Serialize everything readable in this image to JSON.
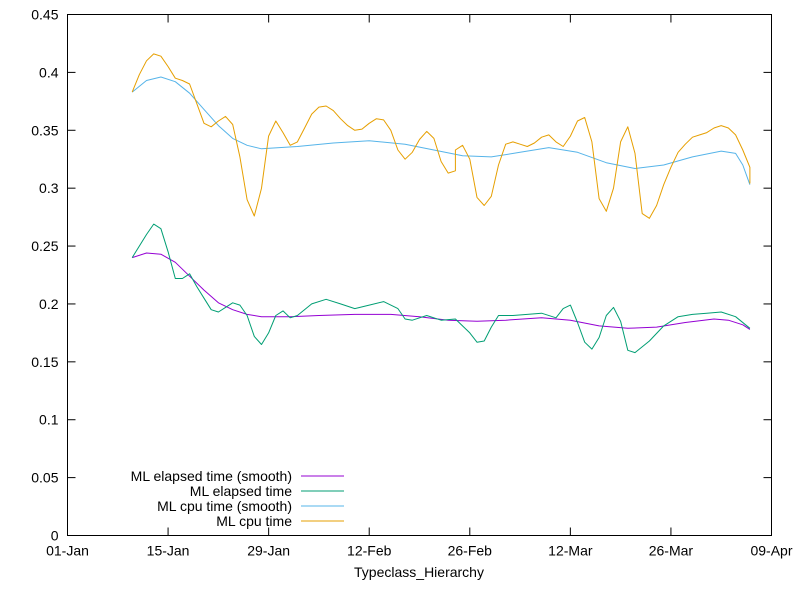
{
  "chart_data": {
    "type": "line",
    "title": "",
    "xlabel": "Typeclass_Hierarchy",
    "ylabel": "",
    "x_ticks": [
      "01-Jan",
      "15-Jan",
      "29-Jan",
      "12-Feb",
      "26-Feb",
      "12-Mar",
      "26-Mar",
      "09-Apr"
    ],
    "y_ticks": [
      "0",
      "0.05",
      "0.1",
      "0.15",
      "0.2",
      "0.25",
      "0.3",
      "0.35",
      "0.4",
      "0.45"
    ],
    "xlim": [
      "01-Jan",
      "09-Apr"
    ],
    "ylim": [
      0,
      0.45
    ],
    "grid": false,
    "legend_position": "bottom-left",
    "series": [
      {
        "name": "ML elapsed time (smooth)",
        "color": "#9400d3",
        "points": [
          [
            "10-Jan",
            0.24
          ],
          [
            "12-Jan",
            0.244
          ],
          [
            "14-Jan",
            0.243
          ],
          [
            "16-Jan",
            0.236
          ],
          [
            "18-Jan",
            0.224
          ],
          [
            "20-Jan",
            0.212
          ],
          [
            "22-Jan",
            0.201
          ],
          [
            "24-Jan",
            0.195
          ],
          [
            "26-Jan",
            0.191
          ],
          [
            "28-Jan",
            0.189
          ],
          [
            "01-Feb",
            0.189
          ],
          [
            "05-Feb",
            0.19
          ],
          [
            "10-Feb",
            0.191
          ],
          [
            "15-Feb",
            0.191
          ],
          [
            "19-Feb",
            0.189
          ],
          [
            "23-Feb",
            0.186
          ],
          [
            "27-Feb",
            0.185
          ],
          [
            "03-Mar",
            0.186
          ],
          [
            "08-Mar",
            0.188
          ],
          [
            "12-Mar",
            0.186
          ],
          [
            "16-Mar",
            0.181
          ],
          [
            "20-Mar",
            0.179
          ],
          [
            "24-Mar",
            0.18
          ],
          [
            "28-Mar",
            0.184
          ],
          [
            "01-Apr",
            0.187
          ],
          [
            "03-Apr",
            0.186
          ],
          [
            "05-Apr",
            0.182
          ],
          [
            "06-Apr",
            0.178
          ]
        ]
      },
      {
        "name": "ML elapsed time",
        "color": "#009e73",
        "points": [
          [
            "10-Jan",
            0.24
          ],
          [
            "12-Jan",
            0.26
          ],
          [
            "13-Jan",
            0.269
          ],
          [
            "14-Jan",
            0.265
          ],
          [
            "15-Jan",
            0.245
          ],
          [
            "16-Jan",
            0.222
          ],
          [
            "17-Jan",
            0.222
          ],
          [
            "18-Jan",
            0.226
          ],
          [
            "19-Jan",
            0.215
          ],
          [
            "20-Jan",
            0.205
          ],
          [
            "21-Jan",
            0.195
          ],
          [
            "22-Jan",
            0.193
          ],
          [
            "23-Jan",
            0.197
          ],
          [
            "24-Jan",
            0.201
          ],
          [
            "25-Jan",
            0.199
          ],
          [
            "26-Jan",
            0.19
          ],
          [
            "27-Jan",
            0.172
          ],
          [
            "28-Jan",
            0.165
          ],
          [
            "29-Jan",
            0.175
          ],
          [
            "30-Jan",
            0.19
          ],
          [
            "31-Jan",
            0.194
          ],
          [
            "01-Feb",
            0.188
          ],
          [
            "02-Feb",
            0.19
          ],
          [
            "04-Feb",
            0.2
          ],
          [
            "06-Feb",
            0.204
          ],
          [
            "08-Feb",
            0.2
          ],
          [
            "10-Feb",
            0.196
          ],
          [
            "12-Feb",
            0.199
          ],
          [
            "14-Feb",
            0.202
          ],
          [
            "16-Feb",
            0.196
          ],
          [
            "17-Feb",
            0.187
          ],
          [
            "18-Feb",
            0.186
          ],
          [
            "20-Feb",
            0.19
          ],
          [
            "22-Feb",
            0.186
          ],
          [
            "24-Feb",
            0.187
          ],
          [
            "26-Feb",
            0.175
          ],
          [
            "27-Feb",
            0.167
          ],
          [
            "28-Feb",
            0.168
          ],
          [
            "01-Mar",
            0.18
          ],
          [
            "02-Mar",
            0.19
          ],
          [
            "04-Mar",
            0.19
          ],
          [
            "06-Mar",
            0.191
          ],
          [
            "08-Mar",
            0.192
          ],
          [
            "10-Mar",
            0.188
          ],
          [
            "11-Mar",
            0.196
          ],
          [
            "12-Mar",
            0.199
          ],
          [
            "13-Mar",
            0.184
          ],
          [
            "14-Mar",
            0.167
          ],
          [
            "15-Mar",
            0.161
          ],
          [
            "16-Mar",
            0.171
          ],
          [
            "17-Mar",
            0.19
          ],
          [
            "18-Mar",
            0.197
          ],
          [
            "19-Mar",
            0.185
          ],
          [
            "20-Mar",
            0.16
          ],
          [
            "21-Mar",
            0.158
          ],
          [
            "23-Mar",
            0.168
          ],
          [
            "25-Mar",
            0.181
          ],
          [
            "27-Mar",
            0.189
          ],
          [
            "29-Mar",
            0.191
          ],
          [
            "31-Mar",
            0.192
          ],
          [
            "02-Apr",
            0.193
          ],
          [
            "04-Apr",
            0.189
          ],
          [
            "06-Apr",
            0.179
          ]
        ]
      },
      {
        "name": "ML cpu time (smooth)",
        "color": "#56b4e9",
        "points": [
          [
            "10-Jan",
            0.383
          ],
          [
            "12-Jan",
            0.393
          ],
          [
            "14-Jan",
            0.396
          ],
          [
            "16-Jan",
            0.392
          ],
          [
            "18-Jan",
            0.382
          ],
          [
            "20-Jan",
            0.368
          ],
          [
            "22-Jan",
            0.354
          ],
          [
            "24-Jan",
            0.343
          ],
          [
            "26-Jan",
            0.337
          ],
          [
            "28-Jan",
            0.334
          ],
          [
            "02-Feb",
            0.336
          ],
          [
            "07-Feb",
            0.339
          ],
          [
            "12-Feb",
            0.341
          ],
          [
            "17-Feb",
            0.338
          ],
          [
            "21-Feb",
            0.333
          ],
          [
            "25-Feb",
            0.328
          ],
          [
            "01-Mar",
            0.327
          ],
          [
            "05-Mar",
            0.331
          ],
          [
            "09-Mar",
            0.335
          ],
          [
            "13-Mar",
            0.331
          ],
          [
            "17-Mar",
            0.322
          ],
          [
            "21-Mar",
            0.317
          ],
          [
            "25-Mar",
            0.32
          ],
          [
            "29-Mar",
            0.327
          ],
          [
            "02-Apr",
            0.332
          ],
          [
            "04-Apr",
            0.33
          ],
          [
            "05-Apr",
            0.32
          ],
          [
            "06-Apr",
            0.303
          ]
        ]
      },
      {
        "name": "ML cpu time",
        "color": "#e69f00",
        "points": [
          [
            "10-Jan",
            0.383
          ],
          [
            "11-Jan",
            0.398
          ],
          [
            "12-Jan",
            0.41
          ],
          [
            "13-Jan",
            0.416
          ],
          [
            "14-Jan",
            0.414
          ],
          [
            "15-Jan",
            0.405
          ],
          [
            "16-Jan",
            0.395
          ],
          [
            "17-Jan",
            0.393
          ],
          [
            "18-Jan",
            0.39
          ],
          [
            "19-Jan",
            0.373
          ],
          [
            "20-Jan",
            0.356
          ],
          [
            "21-Jan",
            0.353
          ],
          [
            "22-Jan",
            0.358
          ],
          [
            "23-Jan",
            0.362
          ],
          [
            "24-Jan",
            0.355
          ],
          [
            "25-Jan",
            0.327
          ],
          [
            "26-Jan",
            0.29
          ],
          [
            "27-Jan",
            0.276
          ],
          [
            "28-Jan",
            0.3
          ],
          [
            "29-Jan",
            0.345
          ],
          [
            "30-Jan",
            0.358
          ],
          [
            "31-Jan",
            0.348
          ],
          [
            "01-Feb",
            0.337
          ],
          [
            "02-Feb",
            0.34
          ],
          [
            "03-Feb",
            0.352
          ],
          [
            "04-Feb",
            0.364
          ],
          [
            "05-Feb",
            0.37
          ],
          [
            "06-Feb",
            0.371
          ],
          [
            "07-Feb",
            0.367
          ],
          [
            "08-Feb",
            0.36
          ],
          [
            "09-Feb",
            0.354
          ],
          [
            "10-Feb",
            0.35
          ],
          [
            "11-Feb",
            0.351
          ],
          [
            "12-Feb",
            0.356
          ],
          [
            "13-Feb",
            0.36
          ],
          [
            "14-Feb",
            0.359
          ],
          [
            "15-Feb",
            0.35
          ],
          [
            "16-Feb",
            0.333
          ],
          [
            "17-Feb",
            0.325
          ],
          [
            "18-Feb",
            0.331
          ],
          [
            "19-Feb",
            0.342
          ],
          [
            "20-Feb",
            0.349
          ],
          [
            "21-Feb",
            0.343
          ],
          [
            "22-Feb",
            0.323
          ],
          [
            "23-Feb",
            0.313
          ],
          [
            "24-Feb",
            0.315
          ],
          [
            "24-Feb",
            0.333
          ],
          [
            "25-Feb",
            0.337
          ],
          [
            "26-Feb",
            0.325
          ],
          [
            "27-Feb",
            0.292
          ],
          [
            "28-Feb",
            0.285
          ],
          [
            "01-Mar",
            0.293
          ],
          [
            "02-Mar",
            0.32
          ],
          [
            "03-Mar",
            0.338
          ],
          [
            "04-Mar",
            0.34
          ],
          [
            "05-Mar",
            0.338
          ],
          [
            "06-Mar",
            0.336
          ],
          [
            "07-Mar",
            0.339
          ],
          [
            "08-Mar",
            0.344
          ],
          [
            "09-Mar",
            0.346
          ],
          [
            "10-Mar",
            0.34
          ],
          [
            "11-Mar",
            0.336
          ],
          [
            "12-Mar",
            0.345
          ],
          [
            "13-Mar",
            0.358
          ],
          [
            "14-Mar",
            0.361
          ],
          [
            "15-Mar",
            0.34
          ],
          [
            "16-Mar",
            0.291
          ],
          [
            "17-Mar",
            0.28
          ],
          [
            "18-Mar",
            0.3
          ],
          [
            "19-Mar",
            0.34
          ],
          [
            "20-Mar",
            0.353
          ],
          [
            "21-Mar",
            0.33
          ],
          [
            "22-Mar",
            0.278
          ],
          [
            "23-Mar",
            0.274
          ],
          [
            "24-Mar",
            0.285
          ],
          [
            "25-Mar",
            0.303
          ],
          [
            "26-Mar",
            0.318
          ],
          [
            "27-Mar",
            0.331
          ],
          [
            "28-Mar",
            0.338
          ],
          [
            "29-Mar",
            0.344
          ],
          [
            "30-Mar",
            0.346
          ],
          [
            "31-Mar",
            0.348
          ],
          [
            "01-Apr",
            0.352
          ],
          [
            "02-Apr",
            0.354
          ],
          [
            "03-Apr",
            0.352
          ],
          [
            "04-Apr",
            0.346
          ],
          [
            "05-Apr",
            0.333
          ],
          [
            "06-Apr",
            0.318
          ],
          [
            "06-Apr",
            0.304
          ]
        ]
      }
    ]
  }
}
